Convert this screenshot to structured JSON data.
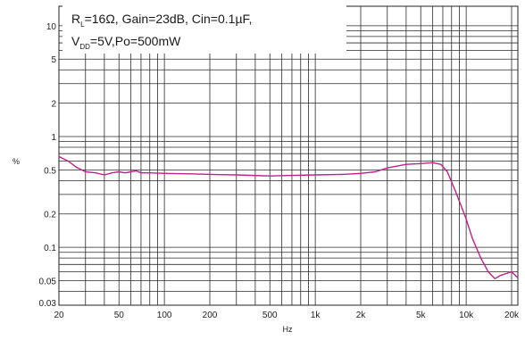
{
  "chart_data": {
    "type": "line",
    "x_scale": "log",
    "y_scale": "log",
    "xlim": [
      20,
      22000
    ],
    "ylim": [
      0.03,
      15
    ],
    "xlabel": "Hz",
    "ylabel": "%",
    "grid": true,
    "x_ticks": [
      {
        "value": 20,
        "label": "20"
      },
      {
        "value": 50,
        "label": "50"
      },
      {
        "value": 100,
        "label": "100"
      },
      {
        "value": 200,
        "label": "200"
      },
      {
        "value": 500,
        "label": "500"
      },
      {
        "value": 1000,
        "label": "1k"
      },
      {
        "value": 2000,
        "label": "2k"
      },
      {
        "value": 5000,
        "label": "5k"
      },
      {
        "value": 10000,
        "label": "10k"
      },
      {
        "value": 20000,
        "label": "20k"
      }
    ],
    "y_ticks": [
      {
        "value": 0.03,
        "label": "0.03"
      },
      {
        "value": 0.05,
        "label": "0.05"
      },
      {
        "value": 0.1,
        "label": "0.1"
      },
      {
        "value": 0.2,
        "label": "0.2"
      },
      {
        "value": 0.5,
        "label": "0.5"
      },
      {
        "value": 1,
        "label": "1"
      },
      {
        "value": 2,
        "label": "2"
      },
      {
        "value": 5,
        "label": "5"
      },
      {
        "value": 10,
        "label": "10"
      }
    ],
    "conditions": {
      "line1": {
        "r_main": "R",
        "r_sub": "L",
        "rest": "=16Ω, Gain=23dB, Cin=0.1µF,"
      },
      "line2": {
        "v_main": "V",
        "v_sub": "DD",
        "rest": "=5V,Po=500mW"
      }
    },
    "series": [
      {
        "color": "#c0218a",
        "points": [
          [
            20,
            0.66
          ],
          [
            23,
            0.6
          ],
          [
            26,
            0.53
          ],
          [
            30,
            0.48
          ],
          [
            35,
            0.47
          ],
          [
            40,
            0.45
          ],
          [
            45,
            0.47
          ],
          [
            50,
            0.48
          ],
          [
            55,
            0.47
          ],
          [
            60,
            0.48
          ],
          [
            65,
            0.49
          ],
          [
            70,
            0.47
          ],
          [
            80,
            0.47
          ],
          [
            100,
            0.465
          ],
          [
            150,
            0.46
          ],
          [
            200,
            0.455
          ],
          [
            300,
            0.45
          ],
          [
            500,
            0.44
          ],
          [
            700,
            0.445
          ],
          [
            1000,
            0.45
          ],
          [
            1500,
            0.455
          ],
          [
            2000,
            0.465
          ],
          [
            2500,
            0.48
          ],
          [
            3000,
            0.52
          ],
          [
            4000,
            0.56
          ],
          [
            5000,
            0.57
          ],
          [
            6000,
            0.58
          ],
          [
            6800,
            0.56
          ],
          [
            7500,
            0.48
          ],
          [
            8500,
            0.32
          ],
          [
            10000,
            0.18
          ],
          [
            11000,
            0.12
          ],
          [
            12500,
            0.08
          ],
          [
            14000,
            0.06
          ],
          [
            15500,
            0.052
          ],
          [
            17000,
            0.056
          ],
          [
            18500,
            0.058
          ],
          [
            20000,
            0.06
          ],
          [
            22000,
            0.053
          ]
        ]
      }
    ]
  }
}
